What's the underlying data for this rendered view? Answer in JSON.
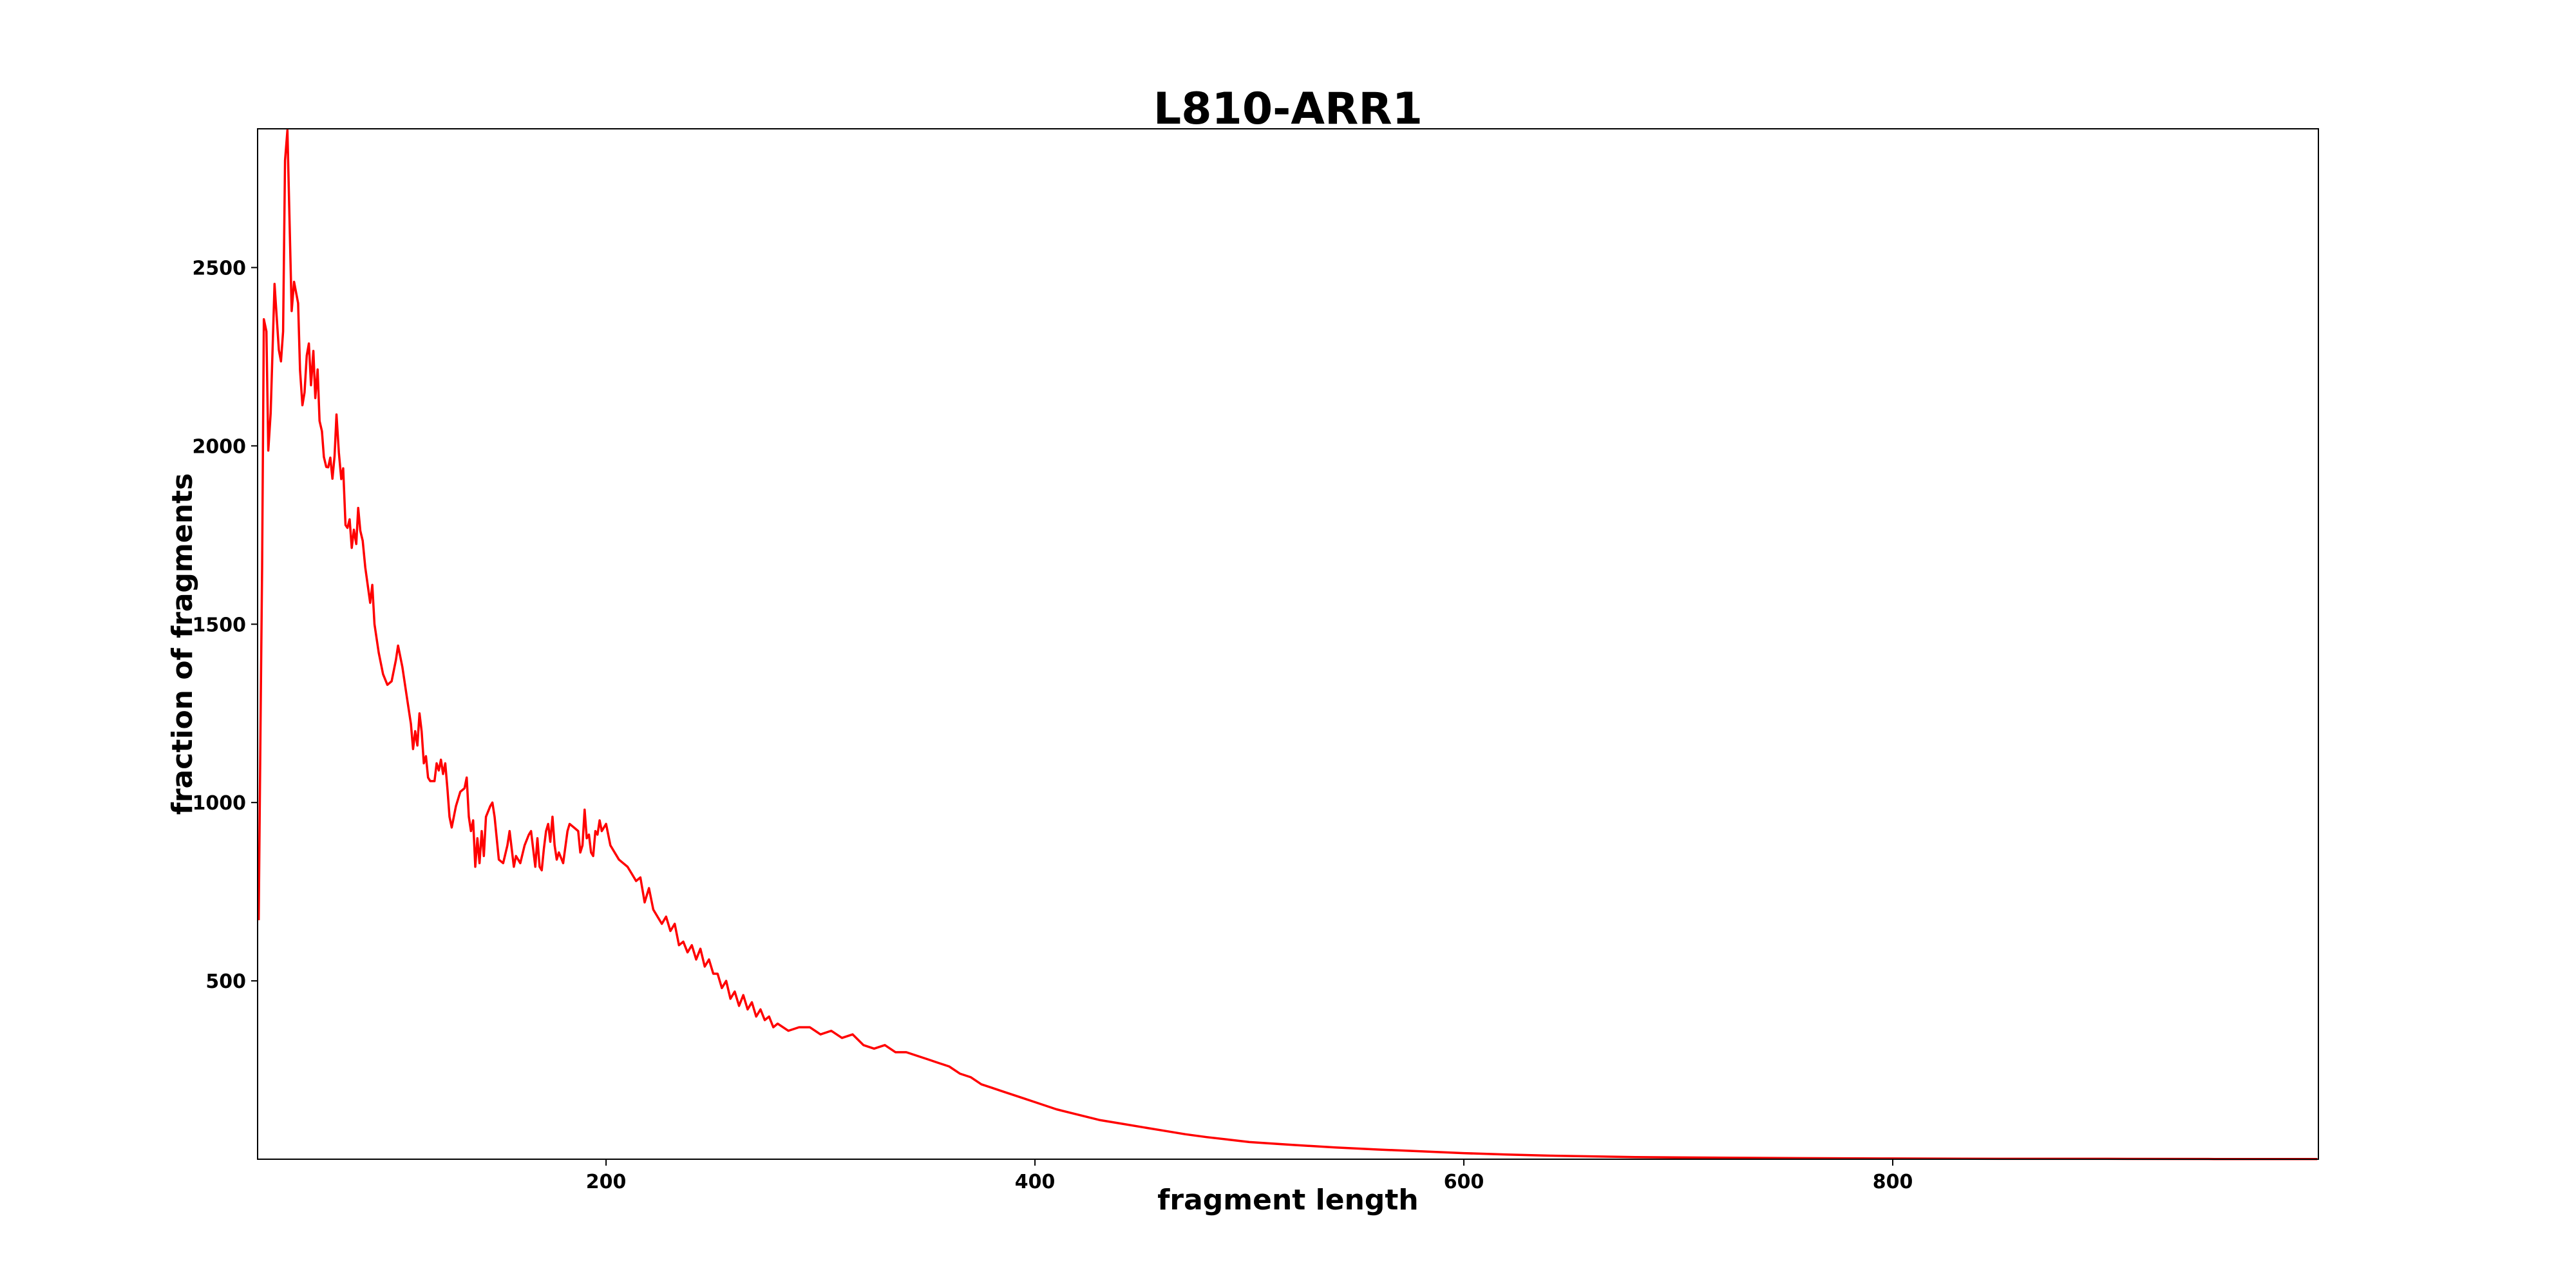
{
  "chart_data": {
    "type": "line",
    "title": "L810-ARR1",
    "xlabel": "fragment length",
    "ylabel": "fraction of fragments",
    "xlim": [
      37.5,
      998.5
    ],
    "ylim": [
      0,
      2889
    ],
    "xticks": [
      200,
      400,
      600,
      800
    ],
    "yticks": [
      500,
      1000,
      1500,
      2000,
      2500
    ],
    "grid": false,
    "series": [
      {
        "name": "L810-ARR1",
        "color": "#ff0000",
        "x": [
          38,
          39,
          39.6,
          40.4,
          41.6,
          42.5,
          43.6,
          45.4,
          47.4,
          48.4,
          49.4,
          50.3,
          51.4,
          53.4,
          54.5,
          56.4,
          57.3,
          58.4,
          59.4,
          60.4,
          61.4,
          62.4,
          63.5,
          64.4,
          65.5,
          66.4,
          67.5,
          68.4,
          69.5,
          70.4,
          71.4,
          72.4,
          73.4,
          74.3,
          75.4,
          76.5,
          77.4,
          78.5,
          79.4,
          80.4,
          81.4,
          82.4,
          83.5,
          84.4,
          85.4,
          86.5,
          87.7,
          90,
          91,
          92,
          94,
          96,
          98,
          100,
          102,
          103,
          105,
          107,
          109,
          110,
          111,
          112,
          113,
          114,
          115,
          116,
          117,
          118,
          120,
          121,
          122,
          123,
          124,
          125,
          126,
          127,
          128,
          130,
          132,
          134,
          135,
          136,
          137,
          138,
          139,
          140,
          141,
          142,
          143,
          144,
          146,
          147,
          148,
          150,
          152,
          154,
          155,
          156,
          157,
          158,
          160,
          162,
          164,
          165,
          166,
          167,
          168,
          169,
          170,
          171,
          172,
          173,
          174,
          175,
          176,
          177,
          178,
          180,
          182,
          183,
          185,
          187,
          188,
          189,
          190,
          191,
          192,
          193,
          194,
          195,
          196,
          197,
          198,
          200,
          202,
          204,
          206,
          208,
          210,
          212,
          214,
          216,
          218,
          220,
          222,
          224,
          226,
          228,
          230,
          232,
          234,
          236,
          238,
          240,
          242,
          244,
          246,
          248,
          250,
          252,
          254,
          256,
          258,
          260,
          262,
          264,
          266,
          268,
          270,
          272,
          274,
          276,
          278,
          280,
          285,
          290,
          295,
          300,
          305,
          310,
          315,
          320,
          325,
          330,
          335,
          340,
          345,
          350,
          355,
          360,
          365,
          370,
          375,
          380,
          385,
          390,
          395,
          400,
          410,
          420,
          430,
          440,
          450,
          460,
          470,
          480,
          490,
          500,
          520,
          540,
          560,
          580,
          600,
          620,
          640,
          660,
          680,
          700,
          750,
          800,
          850,
          900,
          950,
          998
        ],
        "y": [
          670,
          1300,
          1659,
          2355,
          2321,
          1987,
          2092,
          2454,
          2269,
          2237,
          2321,
          2800,
          2885,
          2378,
          2460,
          2400,
          2212,
          2114,
          2150,
          2253,
          2287,
          2170,
          2266,
          2134,
          2214,
          2070,
          2041,
          1969,
          1941,
          1940,
          1967,
          1908,
          1971,
          2088,
          1981,
          1907,
          1937,
          1778,
          1770,
          1794,
          1714,
          1765,
          1725,
          1826,
          1762,
          1734,
          1659,
          1560,
          1610,
          1500,
          1420,
          1360,
          1330,
          1340,
          1400,
          1440,
          1380,
          1300,
          1220,
          1150,
          1200,
          1160,
          1250,
          1200,
          1110,
          1130,
          1070,
          1060,
          1060,
          1110,
          1090,
          1120,
          1080,
          1110,
          1040,
          960,
          930,
          990,
          1030,
          1040,
          1070,
          960,
          920,
          950,
          820,
          900,
          830,
          920,
          850,
          960,
          990,
          1000,
          960,
          840,
          830,
          880,
          920,
          870,
          820,
          850,
          830,
          880,
          910,
          920,
          870,
          820,
          900,
          820,
          810,
          870,
          920,
          940,
          890,
          960,
          880,
          840,
          860,
          830,
          920,
          940,
          930,
          920,
          860,
          880,
          980,
          900,
          910,
          860,
          850,
          920,
          910,
          950,
          920,
          940,
          880,
          860,
          840,
          830,
          820,
          800,
          780,
          790,
          720,
          760,
          700,
          680,
          660,
          680,
          640,
          660,
          600,
          610,
          580,
          600,
          560,
          590,
          540,
          560,
          520,
          520,
          480,
          500,
          450,
          470,
          430,
          460,
          420,
          440,
          400,
          420,
          390,
          400,
          370,
          380,
          360,
          370,
          370,
          350,
          360,
          340,
          350,
          320,
          310,
          320,
          300,
          300,
          290,
          280,
          270,
          260,
          240,
          230,
          210,
          200,
          190,
          180,
          170,
          160,
          140,
          125,
          110,
          100,
          90,
          80,
          70,
          62,
          55,
          48,
          40,
          33,
          27,
          22,
          17,
          13,
          10,
          8,
          6,
          5,
          3,
          2,
          1,
          1,
          0.5,
          0.3
        ]
      }
    ]
  }
}
